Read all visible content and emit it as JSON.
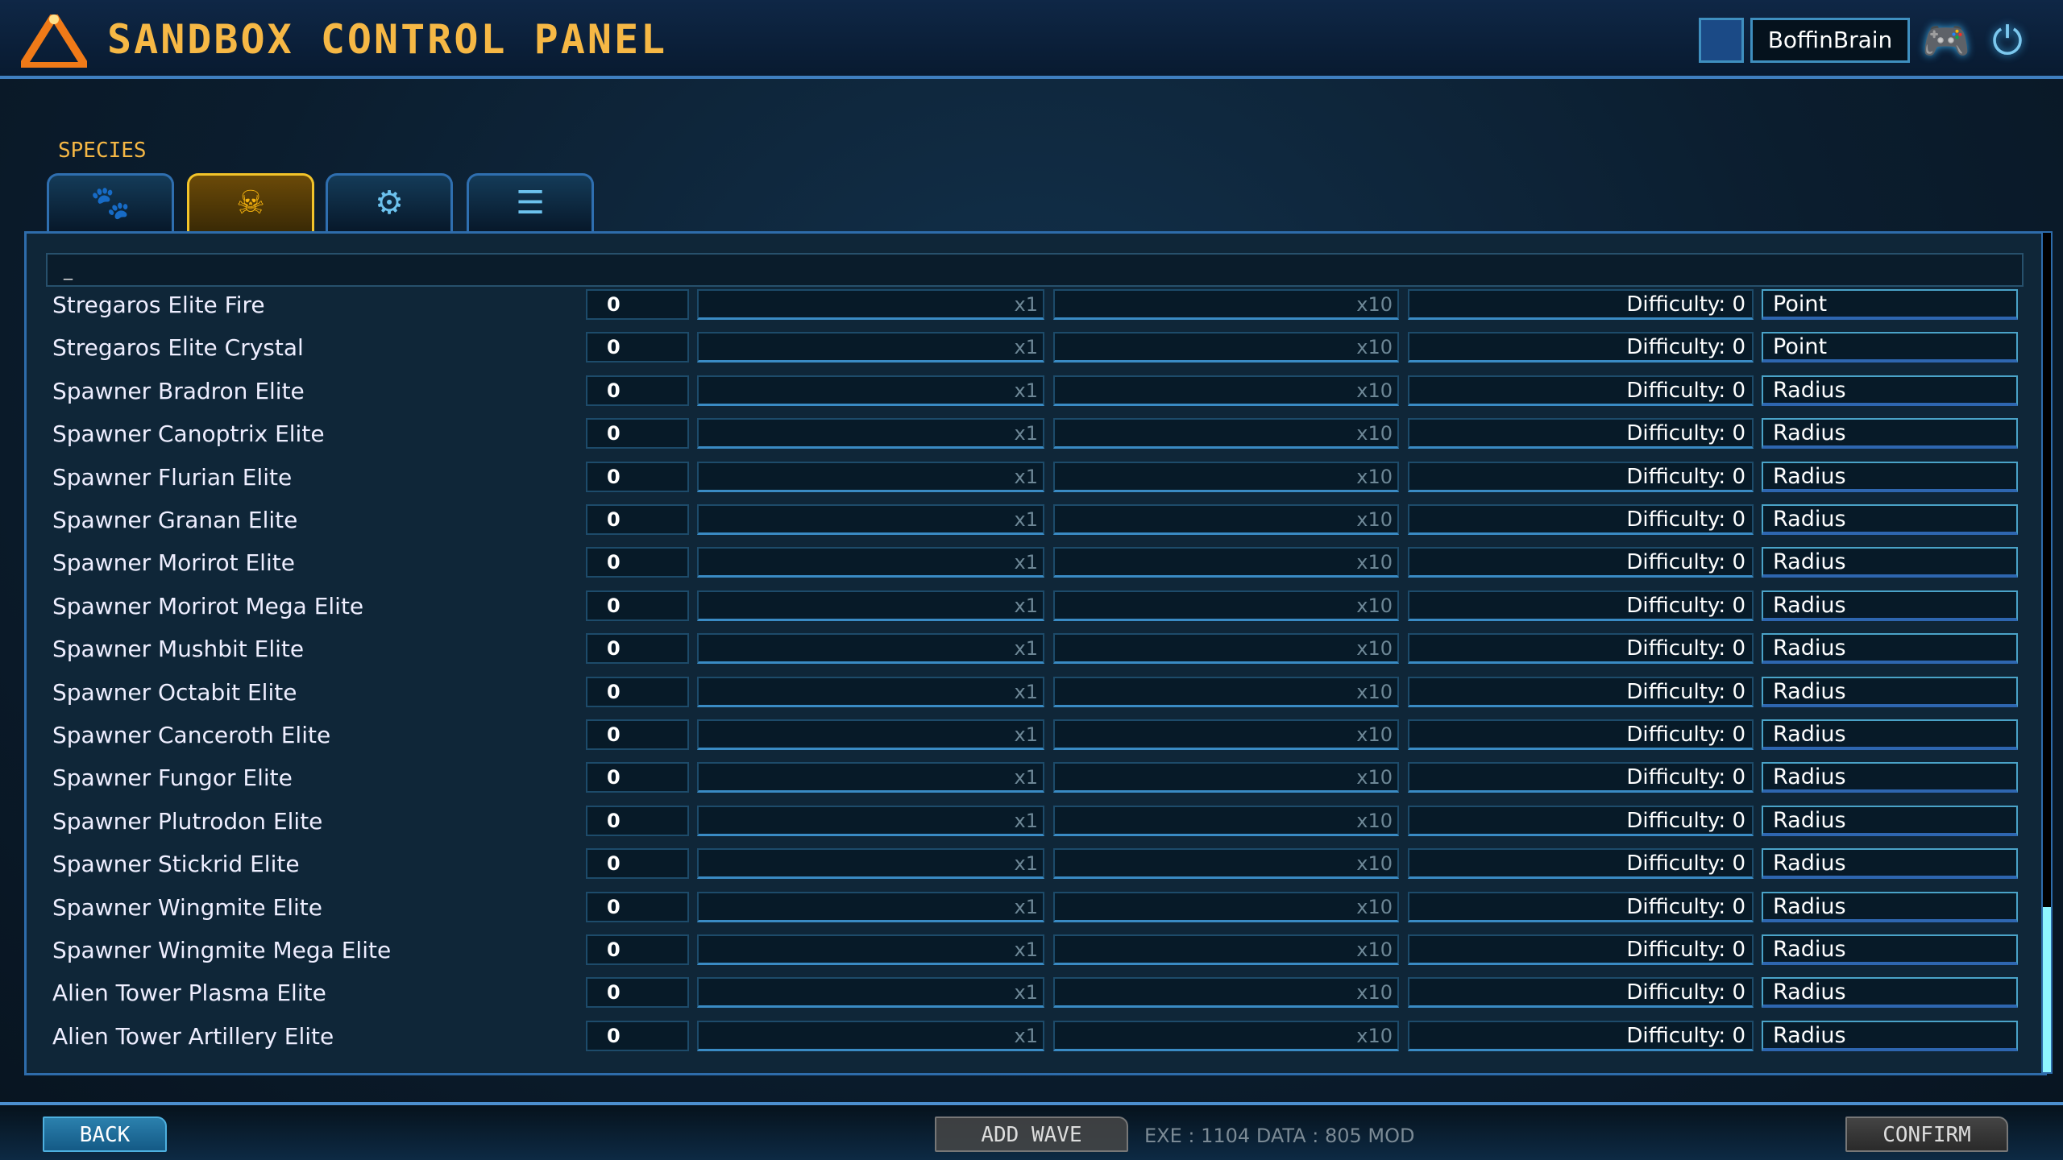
{
  "header": {
    "title": "SANDBOX CONTROL PANEL",
    "username": "BoffinBrain",
    "icons": [
      "steam-profile-icon",
      "discord-icon",
      "power-icon"
    ]
  },
  "section_label": "SPECIES",
  "tabs": [
    {
      "icon": "paw-icon",
      "active": false
    },
    {
      "icon": "alien-skull-icon",
      "active": true
    },
    {
      "icon": "gear-logo-icon",
      "active": false
    },
    {
      "icon": "list-icon",
      "active": false
    }
  ],
  "search": {
    "value": "_"
  },
  "rows": [
    {
      "name": "Stregaros Elite Fire",
      "value": "0",
      "mult1": "x1",
      "mult2": "x10",
      "difficulty": "Difficulty: 0",
      "mode": "Point"
    },
    {
      "name": "Stregaros Elite Crystal",
      "value": "0",
      "mult1": "x1",
      "mult2": "x10",
      "difficulty": "Difficulty: 0",
      "mode": "Point"
    },
    {
      "name": "Spawner Bradron Elite",
      "value": "0",
      "mult1": "x1",
      "mult2": "x10",
      "difficulty": "Difficulty: 0",
      "mode": "Radius"
    },
    {
      "name": "Spawner Canoptrix Elite",
      "value": "0",
      "mult1": "x1",
      "mult2": "x10",
      "difficulty": "Difficulty: 0",
      "mode": "Radius"
    },
    {
      "name": "Spawner Flurian Elite",
      "value": "0",
      "mult1": "x1",
      "mult2": "x10",
      "difficulty": "Difficulty: 0",
      "mode": "Radius"
    },
    {
      "name": "Spawner Granan Elite",
      "value": "0",
      "mult1": "x1",
      "mult2": "x10",
      "difficulty": "Difficulty: 0",
      "mode": "Radius"
    },
    {
      "name": "Spawner Morirot Elite",
      "value": "0",
      "mult1": "x1",
      "mult2": "x10",
      "difficulty": "Difficulty: 0",
      "mode": "Radius"
    },
    {
      "name": "Spawner Morirot Mega Elite",
      "value": "0",
      "mult1": "x1",
      "mult2": "x10",
      "difficulty": "Difficulty: 0",
      "mode": "Radius"
    },
    {
      "name": "Spawner Mushbit Elite",
      "value": "0",
      "mult1": "x1",
      "mult2": "x10",
      "difficulty": "Difficulty: 0",
      "mode": "Radius"
    },
    {
      "name": "Spawner Octabit Elite",
      "value": "0",
      "mult1": "x1",
      "mult2": "x10",
      "difficulty": "Difficulty: 0",
      "mode": "Radius"
    },
    {
      "name": "Spawner Canceroth Elite",
      "value": "0",
      "mult1": "x1",
      "mult2": "x10",
      "difficulty": "Difficulty: 0",
      "mode": "Radius"
    },
    {
      "name": "Spawner Fungor Elite",
      "value": "0",
      "mult1": "x1",
      "mult2": "x10",
      "difficulty": "Difficulty: 0",
      "mode": "Radius"
    },
    {
      "name": "Spawner Plutrodon Elite",
      "value": "0",
      "mult1": "x1",
      "mult2": "x10",
      "difficulty": "Difficulty: 0",
      "mode": "Radius"
    },
    {
      "name": "Spawner Stickrid Elite",
      "value": "0",
      "mult1": "x1",
      "mult2": "x10",
      "difficulty": "Difficulty: 0",
      "mode": "Radius"
    },
    {
      "name": "Spawner Wingmite Elite",
      "value": "0",
      "mult1": "x1",
      "mult2": "x10",
      "difficulty": "Difficulty: 0",
      "mode": "Radius"
    },
    {
      "name": "Spawner Wingmite Mega Elite",
      "value": "0",
      "mult1": "x1",
      "mult2": "x10",
      "difficulty": "Difficulty: 0",
      "mode": "Radius"
    },
    {
      "name": "Alien Tower Plasma Elite",
      "value": "0",
      "mult1": "x1",
      "mult2": "x10",
      "difficulty": "Difficulty: 0",
      "mode": "Radius"
    },
    {
      "name": "Alien Tower Artillery Elite",
      "value": "0",
      "mult1": "x1",
      "mult2": "x10",
      "difficulty": "Difficulty: 0",
      "mode": "Radius"
    }
  ],
  "scroll": {
    "position_fraction": 1.0
  },
  "footer": {
    "back": "BACK",
    "add_wave": "ADD WAVE",
    "confirm": "CONFIRM",
    "version": "EXE : 1104 DATA : 805 MOD"
  },
  "colors": {
    "accent": "#f6b845",
    "border": "#2e6cab",
    "active_tab": "#f3c42a"
  }
}
